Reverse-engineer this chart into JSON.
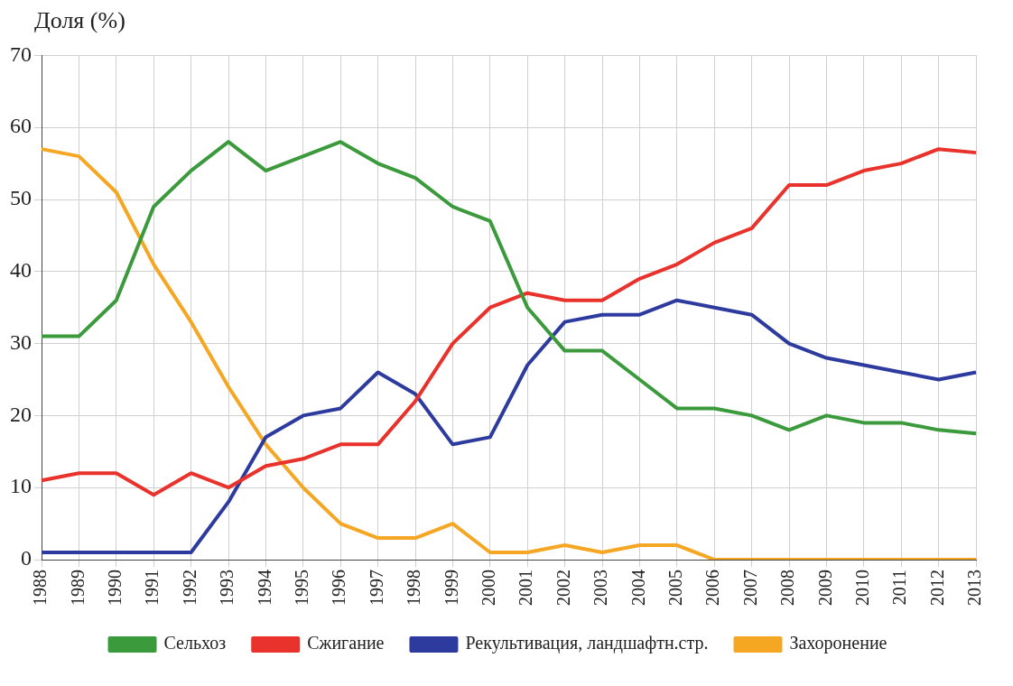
{
  "chart_data": {
    "type": "line",
    "ylabel": "Доля (%)",
    "categories": [
      "1988",
      "1989",
      "1990",
      "1991",
      "1992",
      "1993",
      "1994",
      "1995",
      "1996",
      "1997",
      "1998",
      "1999",
      "2000",
      "2001",
      "2002",
      "2003",
      "2004",
      "2005",
      "2006",
      "2007",
      "2008",
      "2009",
      "2010",
      "2011",
      "2012",
      "2013"
    ],
    "series": [
      {
        "name": "Сельхоз",
        "color": "#3b9a3b",
        "values": [
          31,
          31,
          36,
          49,
          54,
          58,
          54,
          56,
          58,
          55,
          53,
          49,
          47,
          35,
          29,
          29,
          25,
          21,
          21,
          20,
          18,
          20,
          19,
          19,
          18,
          17.5
        ]
      },
      {
        "name": "Сжигание",
        "color": "#e8322b",
        "values": [
          11,
          12,
          12,
          9,
          12,
          10,
          13,
          14,
          16,
          16,
          22,
          30,
          35,
          37,
          36,
          36,
          39,
          41,
          44,
          46,
          52,
          52,
          54,
          55,
          57,
          56.5
        ]
      },
      {
        "name": "Рекультивация, ландшафтн.стр.",
        "color": "#2e3b9e",
        "values": [
          1,
          1,
          1,
          1,
          1,
          8,
          17,
          20,
          21,
          26,
          23,
          16,
          17,
          27,
          33,
          34,
          34,
          36,
          35,
          34,
          30,
          28,
          27,
          26,
          25,
          26
        ]
      },
      {
        "name": "Захоронение",
        "color": "#f5a623",
        "values": [
          57,
          56,
          51,
          41,
          33,
          24,
          16,
          10,
          5,
          3,
          3,
          5,
          1,
          1,
          2,
          1,
          2,
          2,
          0,
          0,
          0,
          0,
          0,
          0,
          0,
          0
        ]
      }
    ],
    "ylim": [
      0,
      70
    ],
    "yticks": [
      0,
      10,
      20,
      30,
      40,
      50,
      60,
      70
    ],
    "grid": true,
    "legend": "bottom",
    "marker": "none",
    "line_style": "solid"
  }
}
